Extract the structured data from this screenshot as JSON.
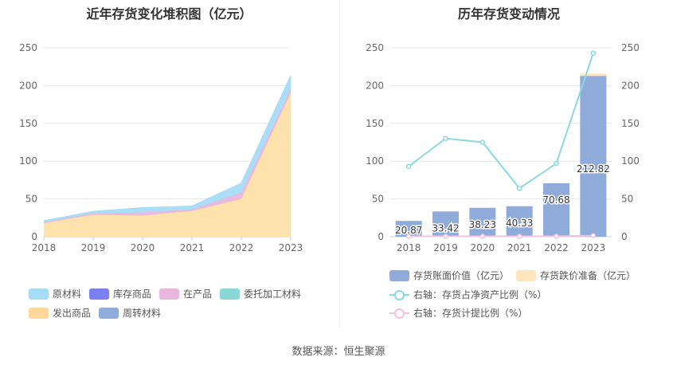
{
  "left_title": "近年存货变化堆积图（亿元）",
  "right_title": "历年存货变动情况",
  "source": "数据来源：恒生聚源",
  "colors": {
    "原材料": "#a6dcf5",
    "库存商品": "#7b7ff0",
    "在产品": "#e9b7dd",
    "委托加工材料": "#8ad8d6",
    "发出商品": "#fde0a8",
    "周转材料": "#8eabd9",
    "bar": "#8eabd9",
    "bar_top": "#fde6bd",
    "ratio1": "#8ad8e0",
    "ratio2": "#f2c2de"
  },
  "chart_data": [
    {
      "type": "area",
      "title": "近年存货变化堆积图（亿元）",
      "categories": [
        "2018",
        "2019",
        "2020",
        "2021",
        "2022",
        "2023"
      ],
      "ylim": [
        0,
        250
      ],
      "yticks": [
        0,
        50,
        100,
        150,
        200,
        250
      ],
      "stacked": true,
      "series": [
        {
          "name": "发出商品",
          "values": [
            18,
            29,
            28,
            34,
            50,
            190
          ]
        },
        {
          "name": "周转材料",
          "values": [
            0,
            0,
            0,
            0,
            0,
            0
          ]
        },
        {
          "name": "在产品",
          "values": [
            1,
            2,
            4,
            2,
            8,
            5
          ]
        },
        {
          "name": "委托加工材料",
          "values": [
            0,
            0,
            0,
            0,
            0,
            0
          ]
        },
        {
          "name": "库存商品",
          "values": [
            0,
            0,
            0,
            0,
            0,
            0
          ]
        },
        {
          "name": "原材料",
          "values": [
            1.87,
            2.42,
            6.23,
            4.33,
            12.68,
            17.82
          ]
        }
      ],
      "legend": [
        "原材料",
        "库存商品",
        "在产品",
        "委托加工材料",
        "发出商品",
        "周转材料"
      ],
      "legend_position": "bottom"
    },
    {
      "type": "bar",
      "title": "历年存货变动情况",
      "categories": [
        "2018",
        "2019",
        "2020",
        "2021",
        "2022",
        "2023"
      ],
      "ylim": [
        0,
        250
      ],
      "yticks": [
        0,
        50,
        100,
        150,
        200,
        250
      ],
      "y2lim": [
        0,
        250
      ],
      "y2ticks": [
        0,
        50,
        100,
        150,
        200,
        250
      ],
      "bar_series": [
        {
          "name": "存货账面价值（亿元）",
          "values": [
            20.87,
            33.42,
            38.23,
            40.33,
            70.68,
            212.82
          ]
        },
        {
          "name": "存货跌价准备（亿元）",
          "values": [
            0,
            0,
            0,
            0,
            0,
            3
          ]
        }
      ],
      "bar_labels": [
        "20.87",
        "33.42",
        "38.23",
        "40.33",
        "70.68",
        "212.82"
      ],
      "line_series": [
        {
          "name": "右轴：存货占净资产比例（%）",
          "values": [
            93,
            130,
            125,
            64,
            97,
            243
          ]
        },
        {
          "name": "右轴：存货计提比例（%）",
          "values": [
            0.5,
            0.5,
            0.5,
            0.5,
            0.5,
            1.4
          ]
        }
      ],
      "legend_position": "bottom"
    }
  ]
}
